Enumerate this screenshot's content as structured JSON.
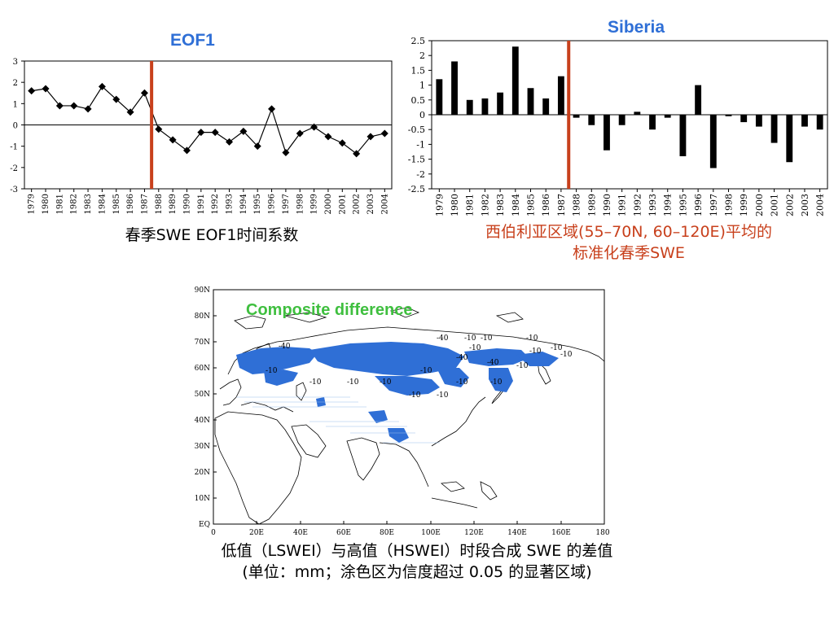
{
  "eof1_panel": {
    "title": "EOF1",
    "caption": "春季SWE EOF1时间系数"
  },
  "siberia_panel": {
    "title": "Siberia",
    "caption_line1": "西伯利亚区域(55–70N, 60–120E)平均的",
    "caption_line2": "标准化春季SWE"
  },
  "map_panel": {
    "title": "Composite difference",
    "caption_line1": "低值（LSWEI）与高值（HSWEI）时段合成 SWE 的差值",
    "caption_line2": "(单位：mm；涂色区为信度超过 0.05 的显著区域)",
    "lat_labels": [
      "90N",
      "80N",
      "70N",
      "60N",
      "50N",
      "40N",
      "30N",
      "20N",
      "10N",
      "EQ"
    ],
    "lon_labels": [
      "0",
      "20E",
      "40E",
      "60E",
      "80E",
      "100E",
      "120E",
      "140E",
      "160E",
      "180"
    ],
    "contour_labels": [
      "-40",
      "-10",
      "-10",
      "-10",
      "-10",
      "-10",
      "-10",
      "-40",
      "-40",
      "-40",
      "-10",
      "-10",
      "-10",
      "-10",
      "-10",
      "-10",
      "-10",
      "-10",
      "-10",
      "-10",
      "-10"
    ],
    "shading_color": "#2f6fd6"
  },
  "chart_data": [
    {
      "type": "line",
      "x": [
        "1979",
        "1980",
        "1981",
        "1982",
        "1983",
        "1984",
        "1985",
        "1986",
        "1987",
        "1988",
        "1989",
        "1990",
        "1991",
        "1992",
        "1993",
        "1994",
        "1995",
        "1996",
        "1997",
        "1998",
        "1999",
        "2000",
        "2001",
        "2002",
        "2003",
        "2004"
      ],
      "values": [
        1.6,
        1.7,
        0.9,
        0.9,
        0.75,
        1.8,
        1.2,
        0.6,
        1.5,
        -0.2,
        -0.7,
        -1.2,
        -0.35,
        -0.35,
        -0.8,
        -0.3,
        -1.0,
        0.75,
        -1.3,
        -0.4,
        -0.1,
        -0.55,
        -0.85,
        -1.35,
        -0.55,
        -0.4
      ],
      "yticks": [
        "3",
        "2",
        "1",
        "0",
        "-1",
        "-2",
        "-3"
      ],
      "ylim": [
        -3,
        3
      ],
      "marker": "diamond",
      "divider_year": "1988",
      "divider_color": "#c8401c"
    },
    {
      "type": "bar",
      "categories": [
        "1979",
        "1980",
        "1981",
        "1982",
        "1983",
        "1984",
        "1985",
        "1986",
        "1987",
        "1988",
        "1989",
        "1990",
        "1991",
        "1992",
        "1993",
        "1994",
        "1995",
        "1996",
        "1997",
        "1998",
        "1999",
        "2000",
        "2001",
        "2002",
        "2003",
        "2004"
      ],
      "values": [
        1.2,
        1.8,
        0.5,
        0.55,
        0.75,
        2.3,
        0.9,
        0.55,
        1.3,
        -0.1,
        -0.35,
        -1.2,
        -0.35,
        0.1,
        -0.5,
        -0.1,
        -1.4,
        1.0,
        -1.8,
        -0.05,
        -0.25,
        -0.4,
        -0.95,
        -1.6,
        -0.4,
        -0.5
      ],
      "yticks": [
        "2.5",
        "2",
        "1.5",
        "1",
        "0.5",
        "0",
        "-0.5",
        "-1",
        "-1.5",
        "-2",
        "-2.5"
      ],
      "ylim": [
        -2.5,
        2.5
      ],
      "bar_color": "#000000",
      "divider_year": "1988",
      "divider_color": "#c8401c"
    }
  ]
}
